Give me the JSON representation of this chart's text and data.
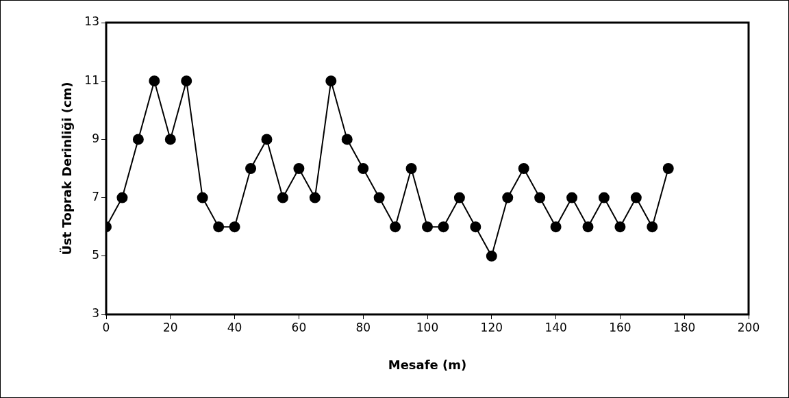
{
  "chart_data": {
    "type": "line",
    "xlabel": "Mesafe (m)",
    "ylabel": "Üst Toprak Derinliği (cm)",
    "x": [
      0,
      5,
      10,
      15,
      20,
      25,
      30,
      35,
      40,
      45,
      50,
      55,
      60,
      65,
      70,
      75,
      80,
      85,
      90,
      95,
      100,
      105,
      110,
      115,
      120,
      125,
      130,
      135,
      140,
      145,
      150,
      155,
      160,
      165,
      170,
      175
    ],
    "series": [
      {
        "color": "#000000",
        "values": [
          6,
          7,
          9,
          11,
          9,
          11,
          7,
          6,
          6,
          8,
          9,
          7,
          8,
          7,
          11,
          9,
          8,
          7,
          6,
          8,
          6,
          6,
          7,
          6,
          5,
          7,
          8,
          7,
          6,
          7,
          6,
          7,
          6,
          7,
          6,
          8
        ]
      }
    ],
    "xlim": [
      0,
      200
    ],
    "xticks": [
      0,
      20,
      40,
      60,
      80,
      100,
      120,
      140,
      160,
      180,
      200
    ],
    "ylim": [
      3,
      13
    ],
    "yticks": [
      3,
      5,
      7,
      9,
      11,
      13
    ],
    "grid": false,
    "legend": false,
    "marker": "circle",
    "line_style": "solid"
  }
}
